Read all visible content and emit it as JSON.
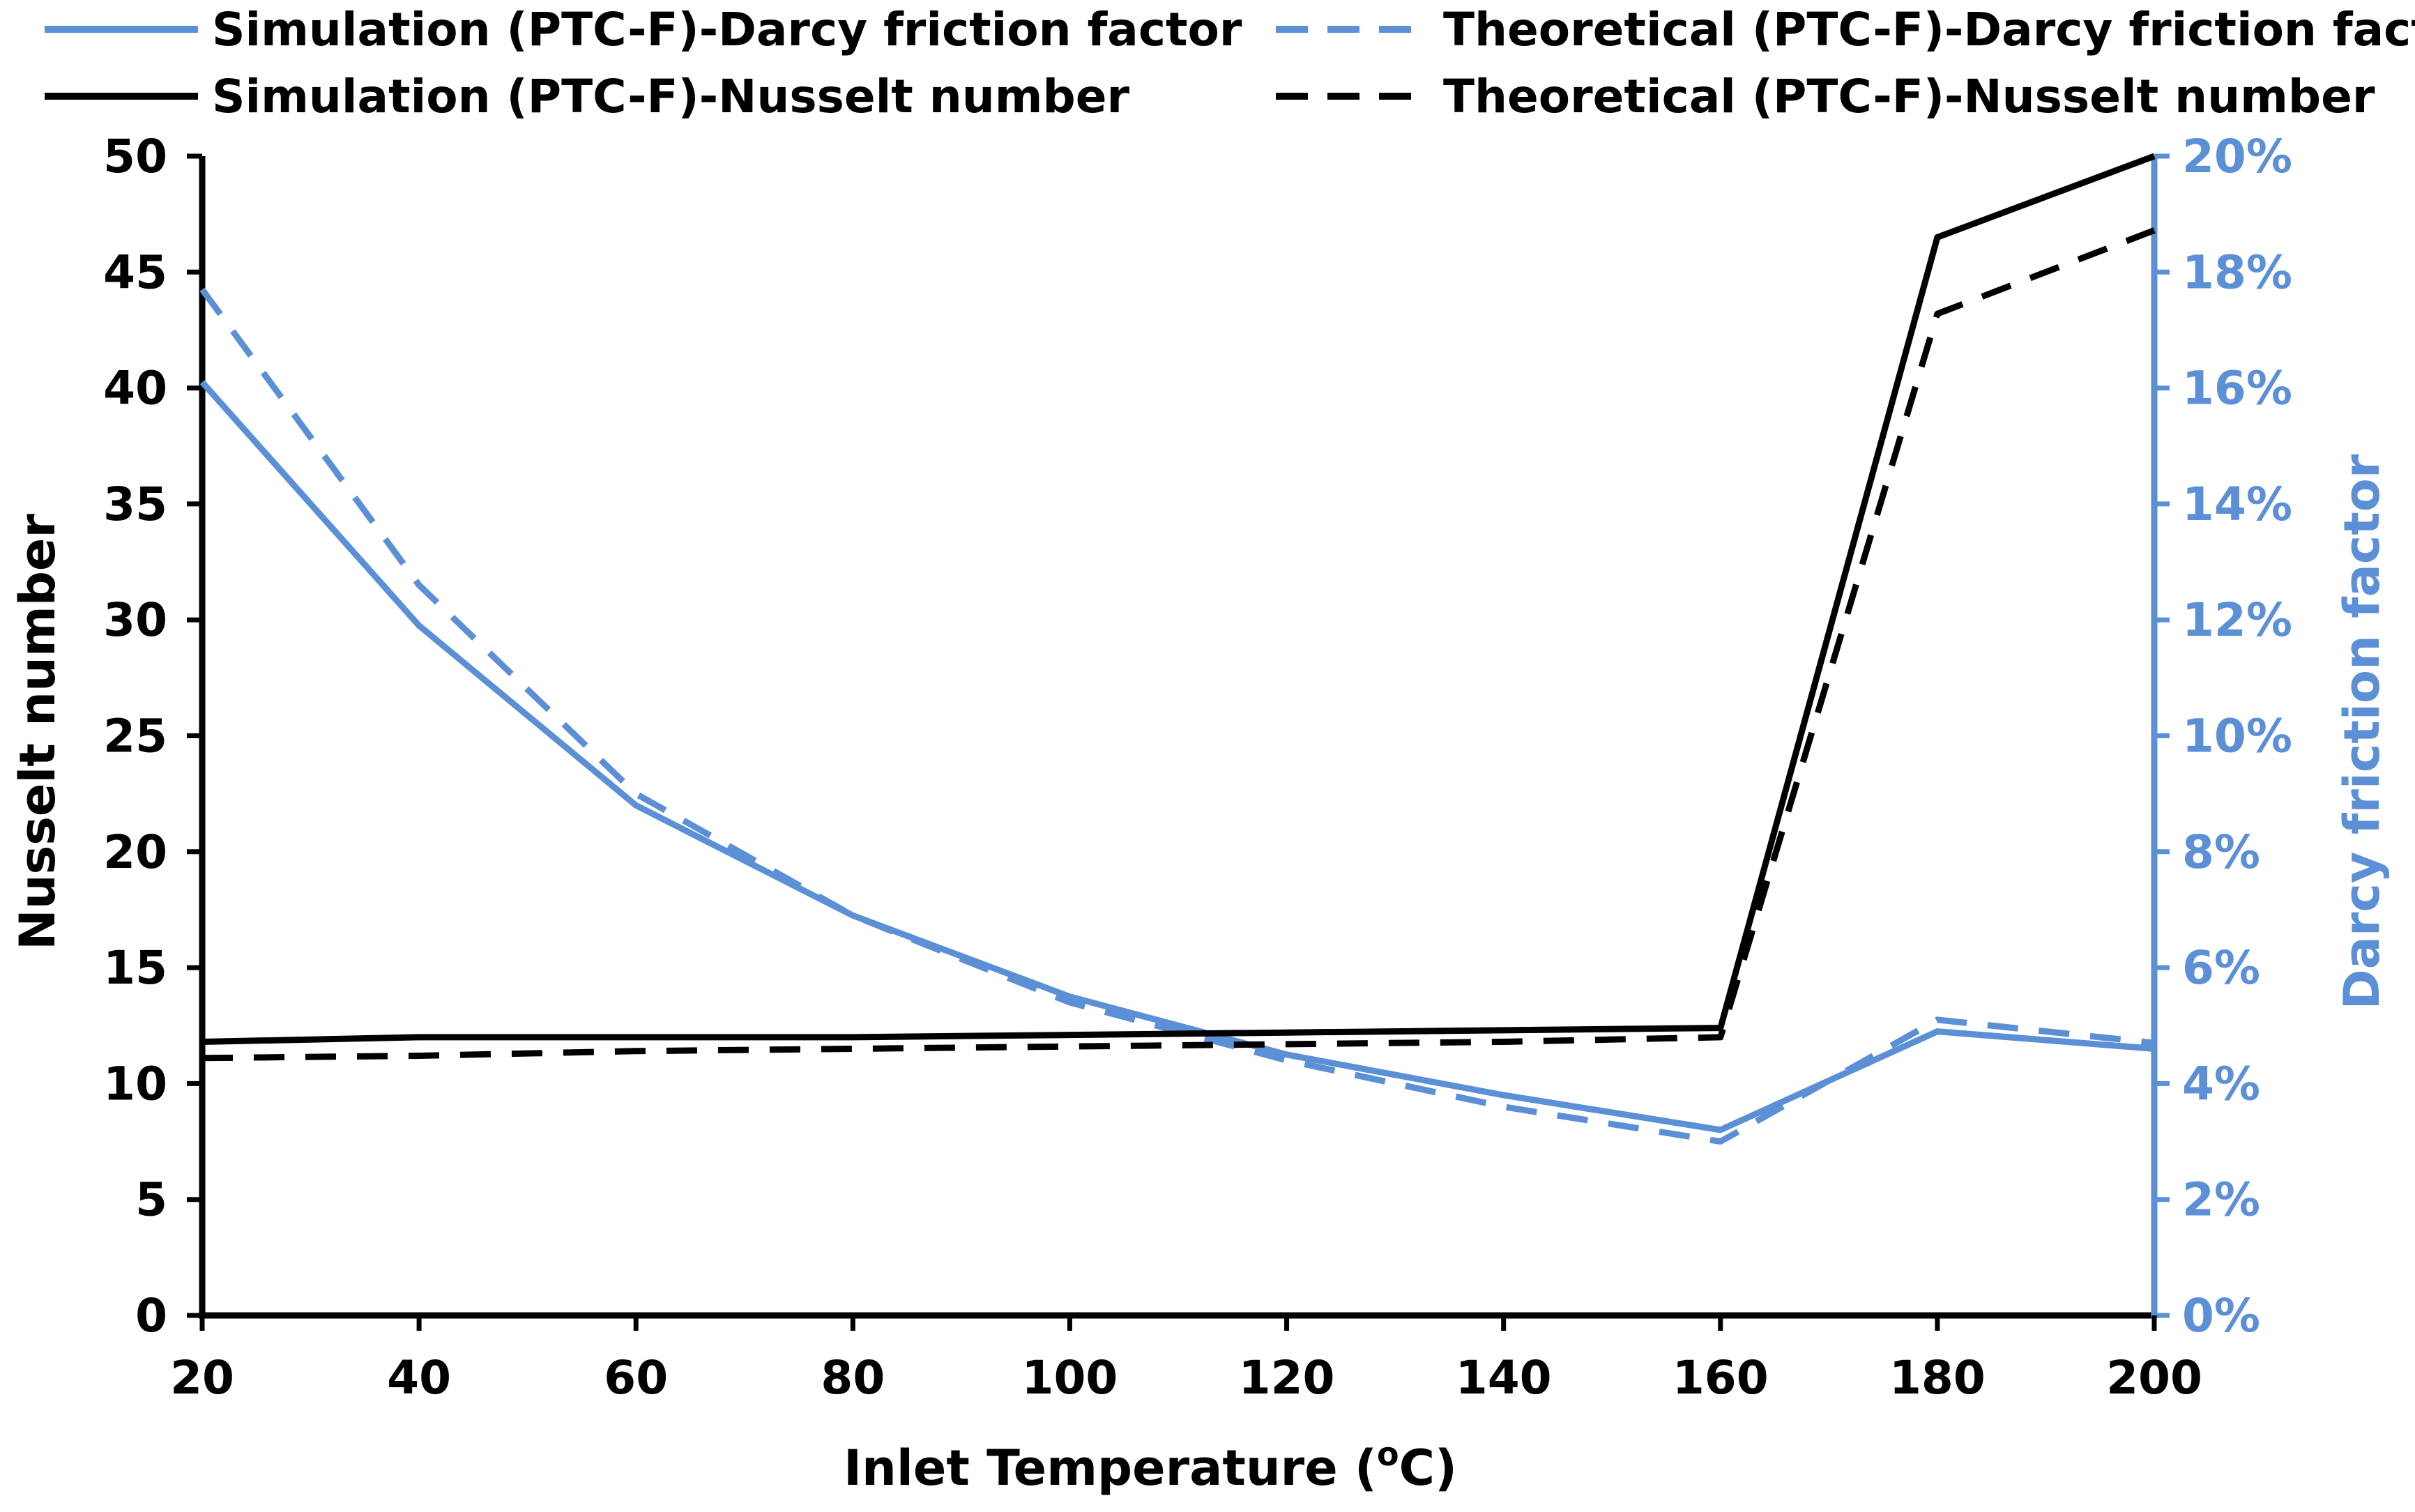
{
  "chart_data": {
    "type": "line",
    "xlabel": "Inlet Temperature (",
    "xlabel_sup": "o",
    "xlabel_suffix": "C)",
    "ylabel_left": "Nusselt number",
    "ylabel_right": "Darcy friction factor",
    "x": [
      20,
      40,
      60,
      80,
      100,
      120,
      140,
      160,
      180,
      200
    ],
    "xlim": [
      20,
      200
    ],
    "x_ticks": [
      "20",
      "40",
      "60",
      "80",
      "100",
      "120",
      "140",
      "160",
      "180",
      "200"
    ],
    "ylim_left": [
      0,
      50
    ],
    "y_left_ticks": [
      "0",
      "5",
      "10",
      "15",
      "20",
      "25",
      "30",
      "35",
      "40",
      "45",
      "50"
    ],
    "ylim_right": [
      0,
      0.2
    ],
    "y_right_ticks": [
      "0%",
      "2%",
      "4%",
      "6%",
      "8%",
      "10%",
      "12%",
      "14%",
      "16%",
      "18%",
      "20%"
    ],
    "grid": false,
    "legend_position": "top",
    "series": [
      {
        "name": "Simulation (PTC-F)-Darcy friction factor",
        "axis": "right",
        "style": "solid",
        "color": "#5b8fd6",
        "values": [
          0.161,
          0.119,
          0.088,
          0.069,
          0.055,
          0.045,
          0.038,
          0.032,
          0.049,
          0.046
        ]
      },
      {
        "name": "Theoretical (PTC-F)-Darcy friction factor",
        "axis": "right",
        "style": "dashed",
        "color": "#5b8fd6",
        "values": [
          0.177,
          0.126,
          0.09,
          0.069,
          0.054,
          0.044,
          0.036,
          0.03,
          0.051,
          0.047
        ]
      },
      {
        "name": "Simulation (PTC-F)-Nusselt number",
        "axis": "left",
        "style": "solid",
        "color": "#000000",
        "values": [
          11.8,
          12.0,
          12.0,
          12.0,
          12.1,
          12.2,
          12.3,
          12.4,
          46.5,
          50.0
        ]
      },
      {
        "name": "Theoretical (PTC-F)-Nusselt number",
        "axis": "left",
        "style": "dashed",
        "color": "#000000",
        "values": [
          11.1,
          11.2,
          11.4,
          11.5,
          11.6,
          11.7,
          11.8,
          12.0,
          43.2,
          46.8
        ]
      }
    ]
  }
}
